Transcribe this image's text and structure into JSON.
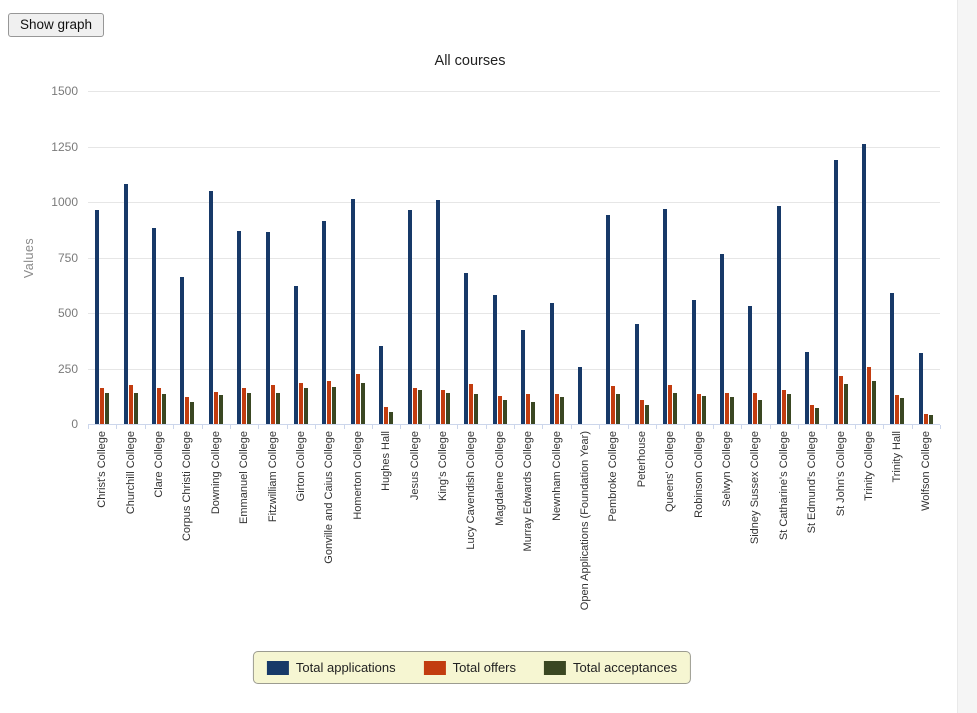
{
  "toolbar": {
    "show_graph_label": "Show graph"
  },
  "chart_data": {
    "type": "bar",
    "title": "All courses",
    "xlabel": "",
    "ylabel": "Values",
    "ylim": [
      0,
      1500
    ],
    "ytick_step": 250,
    "grid": true,
    "legend_position": "bottom",
    "categories": [
      "Christ's College",
      "Churchill College",
      "Clare College",
      "Corpus Christi College",
      "Downing College",
      "Emmanuel College",
      "Fitzwilliam College",
      "Girton College",
      "Gonville and Caius College",
      "Homerton College",
      "Hughes Hall",
      "Jesus College",
      "King's College",
      "Lucy Cavendish College",
      "Magdalene College",
      "Murray Edwards College",
      "Newnham College",
      "Open Applications (Foundation Year)",
      "Pembroke College",
      "Peterhouse",
      "Queens' College",
      "Robinson College",
      "Selwyn College",
      "Sidney Sussex College",
      "St Catharine's College",
      "St Edmund's College",
      "St John's College",
      "Trinity College",
      "Trinity Hall",
      "Wolfson College"
    ],
    "series": [
      {
        "name": "Total applications",
        "color": "#173968",
        "values": [
          965,
          1080,
          885,
          660,
          1050,
          870,
          865,
          620,
          915,
          1015,
          350,
          965,
          1010,
          680,
          580,
          425,
          545,
          255,
          940,
          450,
          970,
          560,
          765,
          530,
          980,
          325,
          1190,
          1260,
          590,
          320
        ]
      },
      {
        "name": "Total offers",
        "color": "#c23c0f",
        "values": [
          160,
          175,
          160,
          120,
          145,
          160,
          175,
          185,
          195,
          225,
          75,
          160,
          155,
          180,
          125,
          135,
          135,
          0,
          170,
          110,
          175,
          135,
          140,
          140,
          155,
          85,
          215,
          255,
          130,
          45
        ]
      },
      {
        "name": "Total acceptances",
        "color": "#3a4722",
        "values": [
          140,
          140,
          135,
          100,
          130,
          140,
          140,
          160,
          165,
          185,
          55,
          155,
          140,
          135,
          110,
          100,
          120,
          0,
          135,
          85,
          140,
          125,
          120,
          110,
          135,
          70,
          180,
          195,
          115,
          40
        ]
      }
    ]
  },
  "legend": {
    "background": "#f6f6d2",
    "border_color": "#9c9c90"
  },
  "colors": {
    "grid": "#e6e6e6",
    "axis": "#ccd6eb",
    "page_right_strip": "#f5f5f5"
  }
}
